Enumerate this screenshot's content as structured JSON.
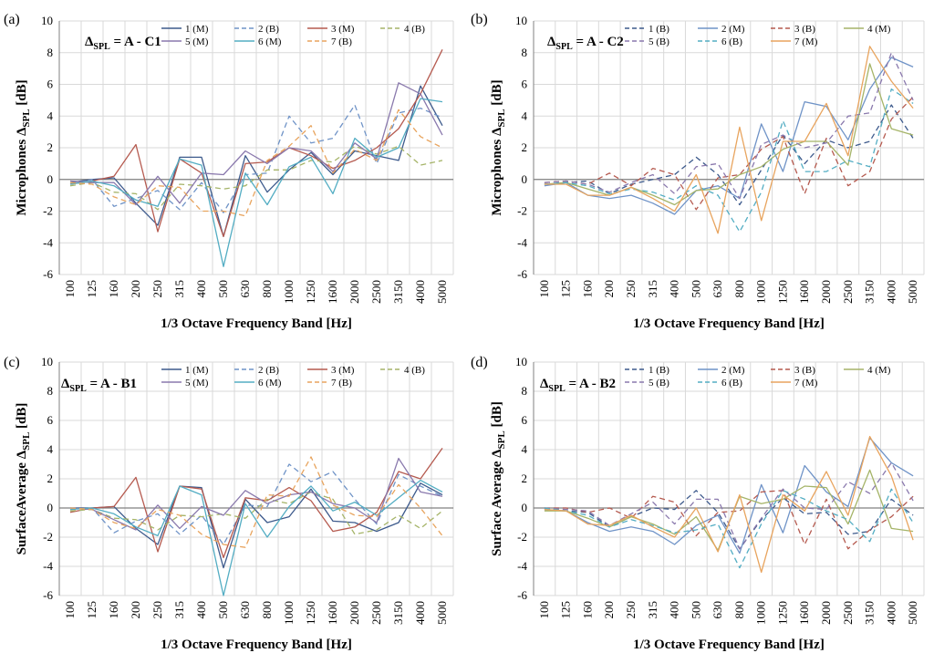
{
  "colors": {
    "s1": "#3d5a8c",
    "s2": "#6f93c7",
    "s3": "#b55a4f",
    "s4": "#a5b468",
    "s5": "#8a79ad",
    "s6": "#53adc3",
    "s7": "#e8a45e",
    "grid": "#d9d9d9",
    "axis": "#808080"
  },
  "chart_data": [
    {
      "type": "line",
      "panel_label": "(a)",
      "delta_label": "Δ",
      "delta_sub": "SPL",
      "delta_expr": " = A - C1",
      "ylabel": "Microphones Δ",
      "ylabel_sub": "SPL",
      "ylabel_unit": " [dB]",
      "xlabel": "1/3 Octave Frequency Band [Hz]",
      "ylim": [
        -6,
        10
      ],
      "yticks": [
        -6,
        -4,
        -2,
        0,
        2,
        4,
        6,
        8,
        10
      ],
      "grid": true,
      "legend_order": [
        0,
        1,
        2,
        3,
        4,
        5,
        6
      ],
      "categories": [
        "100",
        "125",
        "160",
        "200",
        "250",
        "315",
        "400",
        "500",
        "630",
        "800",
        "1000",
        "1250",
        "1600",
        "2000",
        "2500",
        "3150",
        "4000",
        "5000"
      ],
      "series": [
        {
          "name": "1 (M)",
          "color_key": "s1",
          "dash": false,
          "values": [
            -0.2,
            0.0,
            0.1,
            -1.5,
            -2.9,
            1.4,
            1.4,
            -3.6,
            1.5,
            -0.8,
            0.6,
            1.7,
            0.3,
            1.8,
            1.5,
            1.2,
            5.9,
            3.4
          ]
        },
        {
          "name": "2 (B)",
          "color_key": "s2",
          "dash": true,
          "values": [
            -0.3,
            0.0,
            -1.7,
            -1.2,
            -0.7,
            -1.9,
            -0.2,
            -2.1,
            0.3,
            0.4,
            4.0,
            2.3,
            2.6,
            4.7,
            1.0,
            4.2,
            4.5,
            3.9
          ]
        },
        {
          "name": "3 (M)",
          "color_key": "s3",
          "dash": false,
          "values": [
            -0.3,
            -0.1,
            0.2,
            2.2,
            -3.3,
            1.3,
            0.4,
            -3.6,
            1.0,
            1.1,
            2.0,
            1.5,
            0.7,
            1.2,
            2.0,
            3.2,
            5.4,
            8.2
          ]
        },
        {
          "name": "4 (B)",
          "color_key": "s4",
          "dash": true,
          "values": [
            -0.4,
            -0.2,
            -0.8,
            -0.9,
            -1.9,
            -0.3,
            -0.4,
            -0.6,
            -0.4,
            0.6,
            0.6,
            1.2,
            1.1,
            2.1,
            1.6,
            2.1,
            0.9,
            1.2
          ]
        },
        {
          "name": "5 (M)",
          "color_key": "s5",
          "dash": false,
          "values": [
            -0.1,
            -0.2,
            -0.2,
            -1.6,
            0.2,
            -1.5,
            0.4,
            0.3,
            1.8,
            1.0,
            2.0,
            1.8,
            0.5,
            2.3,
            1.3,
            6.1,
            5.4,
            2.8
          ]
        },
        {
          "name": "6 (M)",
          "color_key": "s6",
          "dash": false,
          "values": [
            -0.3,
            -0.1,
            -0.4,
            -1.3,
            -1.7,
            1.3,
            0.9,
            -5.5,
            0.4,
            -1.6,
            0.8,
            1.4,
            -0.9,
            2.6,
            1.4,
            2.0,
            5.1,
            4.9
          ]
        },
        {
          "name": "7 (B)",
          "color_key": "s7",
          "dash": true,
          "values": [
            -0.2,
            -0.3,
            -1.1,
            -1.6,
            -0.4,
            -0.5,
            -2.0,
            -2.0,
            -2.3,
            1.2,
            2.1,
            3.4,
            0.4,
            1.9,
            1.2,
            4.4,
            2.7,
            2.0
          ]
        }
      ]
    },
    {
      "type": "line",
      "panel_label": "(b)",
      "delta_label": "Δ",
      "delta_sub": "SPL",
      "delta_expr": " = A - C2",
      "ylabel": "Microphones Δ",
      "ylabel_sub": "SPL",
      "ylabel_unit": " [dB]",
      "xlabel": "1/3 Octave Frequency Band [Hz]",
      "ylim": [
        -6,
        10
      ],
      "yticks": [
        -6,
        -4,
        -2,
        0,
        2,
        4,
        6,
        8,
        10
      ],
      "grid": true,
      "legend_order": [
        0,
        1,
        2,
        3,
        4,
        5,
        6
      ],
      "categories": [
        "100",
        "125",
        "160",
        "200",
        "250",
        "315",
        "400",
        "500",
        "630",
        "800",
        "1000",
        "1250",
        "1600",
        "2000",
        "2500",
        "3150",
        "4000",
        "5000"
      ],
      "series": [
        {
          "name": "1 (B)",
          "color_key": "s1",
          "dash": true,
          "values": [
            -0.3,
            -0.2,
            -0.1,
            -0.9,
            -0.3,
            0.0,
            0.3,
            1.4,
            0.3,
            -1.6,
            0.6,
            2.8,
            1.0,
            2.5,
            2.0,
            2.4,
            4.7,
            2.6
          ]
        },
        {
          "name": "2 (M)",
          "color_key": "s2",
          "dash": false,
          "values": [
            -0.4,
            -0.2,
            -1.0,
            -1.2,
            -1.0,
            -1.5,
            -2.2,
            -0.7,
            -0.4,
            -1.2,
            3.5,
            0.5,
            4.9,
            4.6,
            2.5,
            5.7,
            7.7,
            7.1
          ]
        },
        {
          "name": "3 (B)",
          "color_key": "s3",
          "dash": true,
          "values": [
            -0.2,
            -0.1,
            -0.3,
            0.4,
            -0.4,
            0.7,
            0.3,
            -1.9,
            0.1,
            0.3,
            1.9,
            2.7,
            -0.9,
            2.6,
            -0.4,
            0.5,
            3.8,
            5.2
          ]
        },
        {
          "name": "4 (M)",
          "color_key": "s4",
          "dash": false,
          "values": [
            -0.3,
            -0.2,
            -0.6,
            -1.0,
            -0.5,
            -1.0,
            -1.6,
            -0.7,
            -0.6,
            0.3,
            0.8,
            1.9,
            2.4,
            2.4,
            0.9,
            7.3,
            3.2,
            2.8
          ]
        },
        {
          "name": "5 (B)",
          "color_key": "s5",
          "dash": true,
          "values": [
            -0.2,
            -0.1,
            -0.3,
            -0.8,
            -0.2,
            0.3,
            -0.9,
            0.8,
            1.0,
            -1.2,
            2.2,
            2.8,
            2.0,
            2.3,
            4.0,
            4.2,
            8.0,
            5.0
          ]
        },
        {
          "name": "6 (B)",
          "color_key": "s6",
          "dash": true,
          "values": [
            -0.3,
            -0.2,
            -0.4,
            -0.9,
            -0.6,
            -0.8,
            -1.3,
            -0.4,
            -1.0,
            -3.3,
            -0.8,
            3.7,
            0.5,
            0.5,
            1.2,
            0.8,
            5.7,
            4.8
          ]
        },
        {
          "name": "7 (M)",
          "color_key": "s7",
          "dash": false,
          "values": [
            -0.3,
            -0.3,
            -1.0,
            -1.0,
            -0.5,
            -1.2,
            -2.0,
            0.3,
            -3.4,
            3.3,
            -2.6,
            2.4,
            2.4,
            4.8,
            1.5,
            8.4,
            6.2,
            4.5
          ]
        }
      ]
    },
    {
      "type": "line",
      "panel_label": "(c)",
      "delta_label": "Δ",
      "delta_sub": "SPL",
      "delta_expr": " = A - B1",
      "ylabel": "SurfaceAverage Δ",
      "ylabel_sub": "SPL",
      "ylabel_unit": " [dB]",
      "xlabel": "1/3 Octave Frequency Band [Hz]",
      "ylim": [
        -6,
        10
      ],
      "yticks": [
        -6,
        -4,
        -2,
        0,
        2,
        4,
        6,
        8,
        10
      ],
      "grid": true,
      "legend_order": [
        0,
        1,
        2,
        3,
        4,
        5,
        6
      ],
      "categories": [
        "100",
        "125",
        "160",
        "200",
        "250",
        "315",
        "400",
        "500",
        "630",
        "800",
        "1000",
        "1250",
        "1600",
        "2000",
        "2500",
        "3150",
        "4000",
        "5000"
      ],
      "series": [
        {
          "name": "1 (M)",
          "color_key": "s1",
          "dash": false,
          "values": [
            0.0,
            0.0,
            0.1,
            -1.4,
            -2.5,
            1.5,
            1.4,
            -4.1,
            0.6,
            -1.0,
            -0.6,
            1.3,
            -0.9,
            -1.0,
            -1.6,
            -1.0,
            1.7,
            0.9
          ]
        },
        {
          "name": "2 (B)",
          "color_key": "s2",
          "dash": true,
          "values": [
            -0.1,
            0.0,
            -1.7,
            -0.9,
            -0.4,
            -1.8,
            -0.5,
            -2.5,
            0.2,
            0.1,
            3.0,
            1.8,
            2.5,
            0.6,
            -1.1,
            2.3,
            1.5,
            0.8
          ]
        },
        {
          "name": "3 (M)",
          "color_key": "s3",
          "dash": false,
          "values": [
            -0.3,
            0.0,
            0.1,
            2.1,
            -3.0,
            1.5,
            1.3,
            -3.4,
            0.7,
            0.5,
            1.4,
            0.5,
            -1.6,
            -1.3,
            -0.3,
            2.5,
            2.0,
            4.1
          ]
        },
        {
          "name": "4 (B)",
          "color_key": "s4",
          "dash": true,
          "values": [
            -0.2,
            -0.1,
            -0.7,
            -0.8,
            -1.5,
            -0.5,
            -0.6,
            -0.4,
            -0.7,
            0.6,
            0.3,
            1.1,
            0.6,
            -1.8,
            -1.5,
            -0.5,
            -1.4,
            -0.2
          ]
        },
        {
          "name": "5 (M)",
          "color_key": "s5",
          "dash": false,
          "values": [
            0.0,
            -0.1,
            -0.8,
            -1.5,
            0.2,
            -1.4,
            0.1,
            -0.5,
            1.2,
            0.3,
            0.9,
            1.1,
            0.3,
            0.0,
            -1.0,
            3.4,
            1.1,
            0.8
          ]
        },
        {
          "name": "6 (M)",
          "color_key": "s6",
          "dash": false,
          "values": [
            -0.1,
            0.0,
            -0.4,
            -1.3,
            -1.9,
            1.5,
            0.9,
            -6.0,
            0.3,
            -2.0,
            0.1,
            1.5,
            -0.2,
            0.4,
            -0.5,
            0.7,
            1.9,
            1.1
          ]
        },
        {
          "name": "7 (B)",
          "color_key": "s7",
          "dash": true,
          "values": [
            0.0,
            -0.1,
            -1.0,
            -1.4,
            -0.1,
            -0.5,
            -1.8,
            -2.5,
            -2.7,
            0.9,
            0.8,
            3.5,
            0.2,
            -0.5,
            -0.6,
            1.6,
            0.0,
            -1.9
          ]
        }
      ]
    },
    {
      "type": "line",
      "panel_label": "(d)",
      "delta_label": "Δ",
      "delta_sub": "SPL",
      "delta_expr": " = A - B2",
      "ylabel": "Surface Average Δ",
      "ylabel_sub": "SPL",
      "ylabel_unit": " [dB]",
      "xlabel": "1/3 Octave Frequency Band [Hz]",
      "ylim": [
        -6,
        10
      ],
      "yticks": [
        -6,
        -4,
        -2,
        0,
        2,
        4,
        6,
        8,
        10
      ],
      "grid": true,
      "legend_order": [
        0,
        1,
        2,
        3,
        4,
        5,
        6
      ],
      "categories": [
        "100",
        "125",
        "160",
        "200",
        "250",
        "315",
        "400",
        "500",
        "630",
        "800",
        "1000",
        "1250",
        "1600",
        "2000",
        "2500",
        "3150",
        "4000",
        "5000"
      ],
      "series": [
        {
          "name": "1 (B)",
          "color_key": "s1",
          "dash": true,
          "values": [
            0.0,
            -0.2,
            -0.3,
            -1.3,
            -0.6,
            0.0,
            -0.1,
            1.2,
            -0.3,
            -2.8,
            -0.8,
            0.7,
            -0.4,
            -0.3,
            -1.8,
            -1.6,
            0.6,
            -0.5
          ]
        },
        {
          "name": "2 (M)",
          "color_key": "s2",
          "dash": false,
          "values": [
            -0.1,
            -0.2,
            -1.0,
            -1.6,
            -1.3,
            -1.6,
            -2.5,
            -1.2,
            -0.5,
            -3.1,
            1.6,
            -1.7,
            2.9,
            1.1,
            0.1,
            4.8,
            3.1,
            2.2
          ]
        },
        {
          "name": "3 (B)",
          "color_key": "s3",
          "dash": true,
          "values": [
            0.0,
            0.0,
            -0.3,
            0.0,
            -0.7,
            0.8,
            0.4,
            -1.9,
            -0.3,
            -0.2,
            1.1,
            1.2,
            -2.5,
            0.6,
            -2.8,
            -1.5,
            -0.6,
            0.8
          ]
        },
        {
          "name": "4 (M)",
          "color_key": "s4",
          "dash": false,
          "values": [
            -0.2,
            -0.2,
            -0.7,
            -1.3,
            -0.6,
            -1.1,
            -1.8,
            -0.6,
            -2.9,
            0.8,
            0.3,
            0.6,
            1.5,
            1.4,
            -1.1,
            2.6,
            -1.4,
            -1.6
          ]
        },
        {
          "name": "5 (B)",
          "color_key": "s5",
          "dash": true,
          "values": [
            0.0,
            -0.1,
            -0.2,
            -1.2,
            -0.4,
            0.4,
            -1.1,
            0.6,
            0.6,
            -2.8,
            -0.7,
            1.3,
            0.0,
            -0.1,
            1.8,
            1.0,
            3.1,
            0.5
          ]
        },
        {
          "name": "6 (B)",
          "color_key": "s6",
          "dash": true,
          "values": [
            0.0,
            -0.2,
            -0.5,
            -1.3,
            -0.8,
            -1.2,
            -1.7,
            -1.5,
            -1.1,
            -4.1,
            -1.1,
            1.2,
            0.6,
            -0.2,
            -0.8,
            -2.3,
            1.3,
            -1.0
          ]
        },
        {
          "name": "7 (M)",
          "color_key": "s7",
          "dash": false,
          "values": [
            -0.1,
            -0.2,
            -1.1,
            -1.2,
            -0.5,
            -1.3,
            -2.0,
            0.0,
            -3.0,
            0.9,
            -4.4,
            0.9,
            -0.2,
            2.5,
            -0.5,
            4.9,
            2.2,
            -2.2
          ]
        }
      ]
    }
  ]
}
